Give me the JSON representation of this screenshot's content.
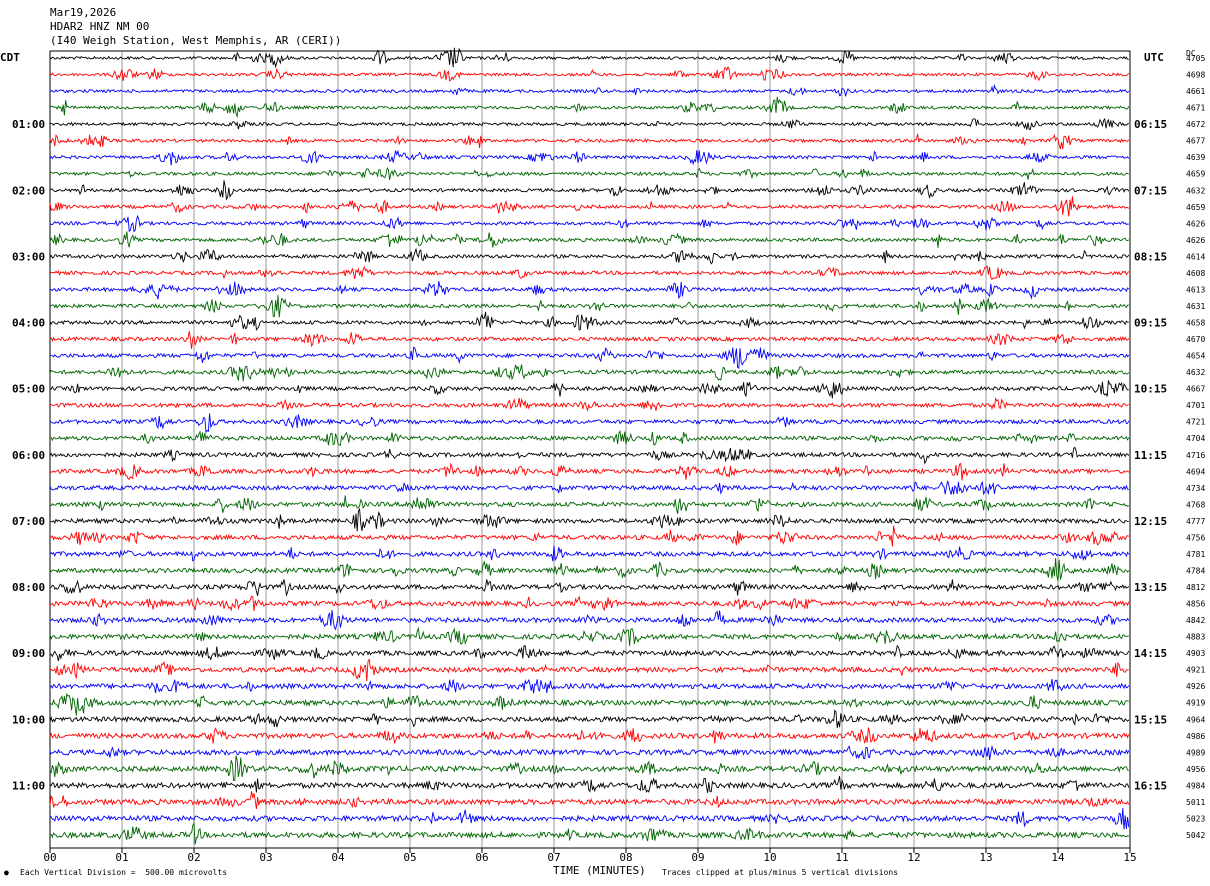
{
  "header": {
    "date": "Mar19,2026",
    "station": "HDAR2 HNZ NM 00",
    "location": "(I40 Weigh Station, West Memphis, AR (CERI))"
  },
  "left_axis_title": "CDT",
  "right_axis_title": "UTC",
  "dc_title": "DC",
  "x_axis_title": "TIME (MINUTES)",
  "footer": {
    "scale_note": "Each Vertical Division =  500.00 microvolts",
    "clip_note": "Traces clipped at plus/minus 5 vertical divisions"
  },
  "chart_data": {
    "type": "line",
    "subtype": "helicorder",
    "xlabel": "TIME (MINUTES)",
    "xlim": [
      0,
      15
    ],
    "x_ticks": [
      "00",
      "01",
      "02",
      "03",
      "04",
      "05",
      "06",
      "07",
      "08",
      "09",
      "10",
      "11",
      "12",
      "13",
      "14",
      "15"
    ],
    "trace_colors": [
      "#000000",
      "#ff0000",
      "#0000ff",
      "#006400"
    ],
    "trace_count": 48,
    "minutes_per_trace": 15,
    "left_labels": [
      {
        "trace": 4,
        "text": "01:00"
      },
      {
        "trace": 8,
        "text": "02:00"
      },
      {
        "trace": 12,
        "text": "03:00"
      },
      {
        "trace": 16,
        "text": "04:00"
      },
      {
        "trace": 20,
        "text": "05:00"
      },
      {
        "trace": 24,
        "text": "06:00"
      },
      {
        "trace": 28,
        "text": "07:00"
      },
      {
        "trace": 32,
        "text": "08:00"
      },
      {
        "trace": 36,
        "text": "09:00"
      },
      {
        "trace": 40,
        "text": "10:00"
      },
      {
        "trace": 44,
        "text": "11:00"
      }
    ],
    "right_labels": [
      {
        "trace": 4,
        "text": "06:15"
      },
      {
        "trace": 8,
        "text": "07:15"
      },
      {
        "trace": 12,
        "text": "08:15"
      },
      {
        "trace": 16,
        "text": "09:15"
      },
      {
        "trace": 20,
        "text": "10:15"
      },
      {
        "trace": 24,
        "text": "11:15"
      },
      {
        "trace": 28,
        "text": "12:15"
      },
      {
        "trace": 32,
        "text": "13:15"
      },
      {
        "trace": 36,
        "text": "14:15"
      },
      {
        "trace": 40,
        "text": "15:15"
      },
      {
        "trace": 44,
        "text": "16:15"
      }
    ],
    "dc_offsets": [
      "4705",
      "4698",
      "4661",
      "4671",
      "4672",
      "4677",
      "4639",
      "4659",
      "4632",
      "4659",
      "4626",
      "4626",
      "4614",
      "4608",
      "4613",
      "4631",
      "4658",
      "4670",
      "4654",
      "4632",
      "4667",
      "4701",
      "4721",
      "4704",
      "4716",
      "4694",
      "4734",
      "4768",
      "4777",
      "4756",
      "4781",
      "4784",
      "4812",
      "4856",
      "4842",
      "4883",
      "4903",
      "4921",
      "4926",
      "4919",
      "4964",
      "4986",
      "4989",
      "4956",
      "4984",
      "5011",
      "5023",
      "5042"
    ],
    "scale_microvolts_per_division": 500.0,
    "clip_divisions": 5
  }
}
